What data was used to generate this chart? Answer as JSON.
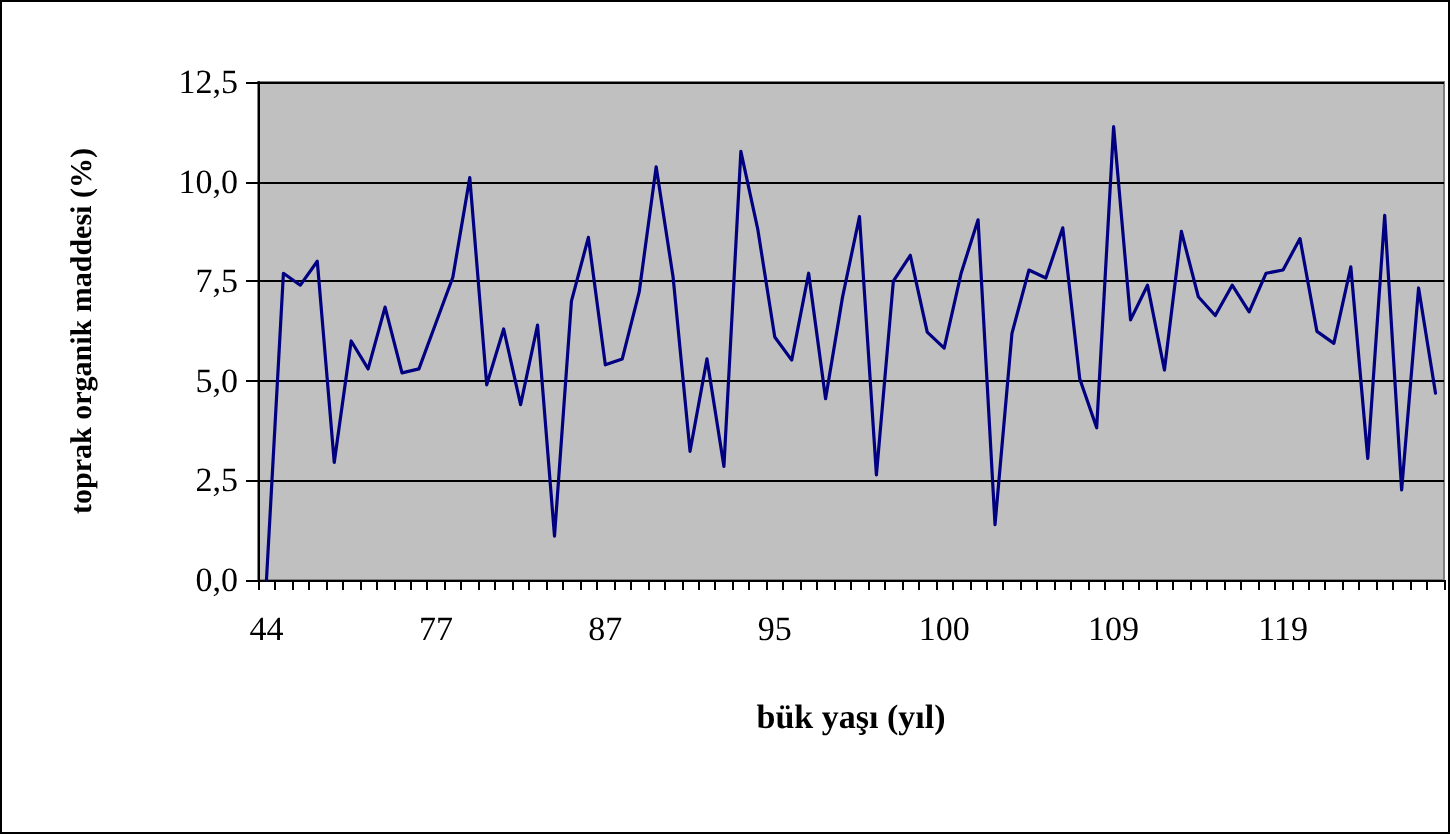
{
  "chart_data": {
    "type": "line",
    "xlabel": "bük yaşı (yıl)",
    "ylabel": "toprak organik maddesi (%)",
    "categories": [
      "44",
      null,
      null,
      null,
      null,
      null,
      null,
      null,
      null,
      null,
      "77",
      null,
      null,
      null,
      null,
      null,
      null,
      null,
      null,
      null,
      "87",
      null,
      null,
      null,
      null,
      null,
      null,
      null,
      null,
      null,
      "95",
      null,
      null,
      null,
      null,
      null,
      null,
      null,
      null,
      null,
      "100",
      null,
      null,
      null,
      null,
      null,
      null,
      null,
      null,
      null,
      "109",
      null,
      null,
      null,
      null,
      null,
      null,
      null,
      null,
      null,
      "119",
      null,
      null,
      null,
      null,
      null,
      null,
      null,
      null,
      null
    ],
    "series": [
      {
        "color": "#000080",
        "values": [
          0,
          7.7,
          7.4,
          8.0,
          2.95,
          6.0,
          5.3,
          6.85,
          5.2,
          5.3,
          6.45,
          7.6,
          10.1,
          4.9,
          6.3,
          4.4,
          6.4,
          1.1,
          7.0,
          8.6,
          5.4,
          5.55,
          7.23,
          10.37,
          7.6,
          3.23,
          5.55,
          2.85,
          10.76,
          8.8,
          6.1,
          5.52,
          7.7,
          4.55,
          7.1,
          9.12,
          2.64,
          7.5,
          8.15,
          6.22,
          5.82,
          7.7,
          9.04,
          1.39,
          6.19,
          7.78,
          7.58,
          8.84,
          5.05,
          3.82,
          11.38,
          6.53,
          7.4,
          5.27,
          8.75,
          7.11,
          6.64,
          7.4,
          6.73,
          7.7,
          7.78,
          8.57,
          6.24,
          5.94,
          7.86,
          3.05,
          9.15,
          2.26,
          7.33,
          4.69
        ]
      }
    ],
    "ylim": [
      0,
      12.5
    ],
    "yticks": [
      {
        "value": 0,
        "label": "0,0"
      },
      {
        "value": 2.5,
        "label": "2,5"
      },
      {
        "value": 5,
        "label": "5,0"
      },
      {
        "value": 7.5,
        "label": "7,5"
      },
      {
        "value": 10,
        "label": "10,0"
      },
      {
        "value": 12.5,
        "label": "12,5"
      }
    ],
    "grid": "y",
    "marker": "none",
    "line_style": "solid"
  }
}
